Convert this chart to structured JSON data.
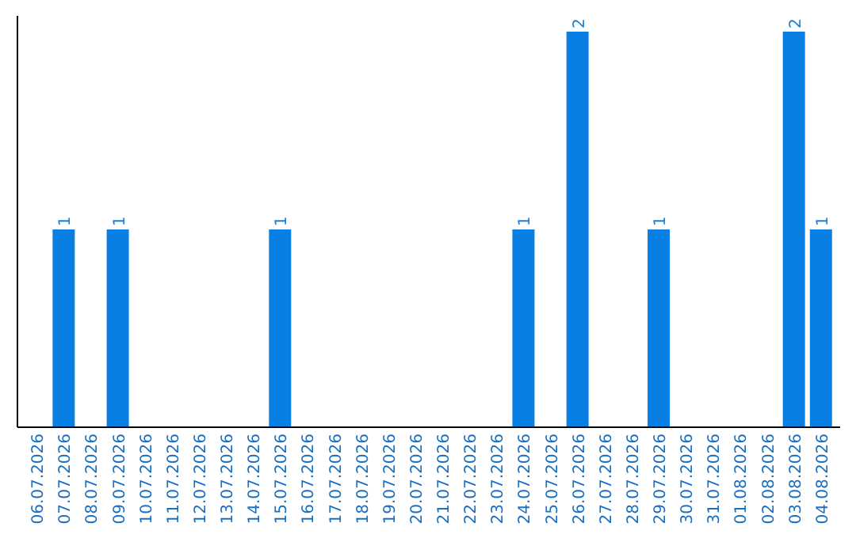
{
  "chart_data": {
    "type": "bar",
    "categories": [
      "06.07.2026",
      "07.07.2026",
      "08.07.2026",
      "09.07.2026",
      "10.07.2026",
      "11.07.2026",
      "12.07.2026",
      "13.07.2026",
      "14.07.2026",
      "15.07.2026",
      "16.07.2026",
      "17.07.2026",
      "18.07.2026",
      "19.07.2026",
      "20.07.2026",
      "21.07.2026",
      "22.07.2026",
      "23.07.2026",
      "24.07.2026",
      "25.07.2026",
      "26.07.2026",
      "27.07.2026",
      "28.07.2026",
      "29.07.2026",
      "30.07.2026",
      "31.07.2026",
      "01.08.2026",
      "02.08.2026",
      "03.08.2026",
      "04.08.2026"
    ],
    "values": [
      0,
      1,
      0,
      1,
      0,
      0,
      0,
      0,
      0,
      1,
      0,
      0,
      0,
      0,
      0,
      0,
      0,
      0,
      1,
      0,
      2,
      0,
      0,
      1,
      0,
      0,
      0,
      0,
      2,
      1
    ],
    "value_labels": [
      null,
      "1",
      null,
      "1",
      null,
      null,
      null,
      null,
      null,
      "1",
      null,
      null,
      null,
      null,
      null,
      null,
      null,
      null,
      "1",
      null,
      "2",
      null,
      null,
      "1",
      null,
      null,
      null,
      null,
      "2",
      "1"
    ],
    "color": "#0a7fe3",
    "ylim": [
      0,
      2.08
    ],
    "tick_labels": "x"
  }
}
